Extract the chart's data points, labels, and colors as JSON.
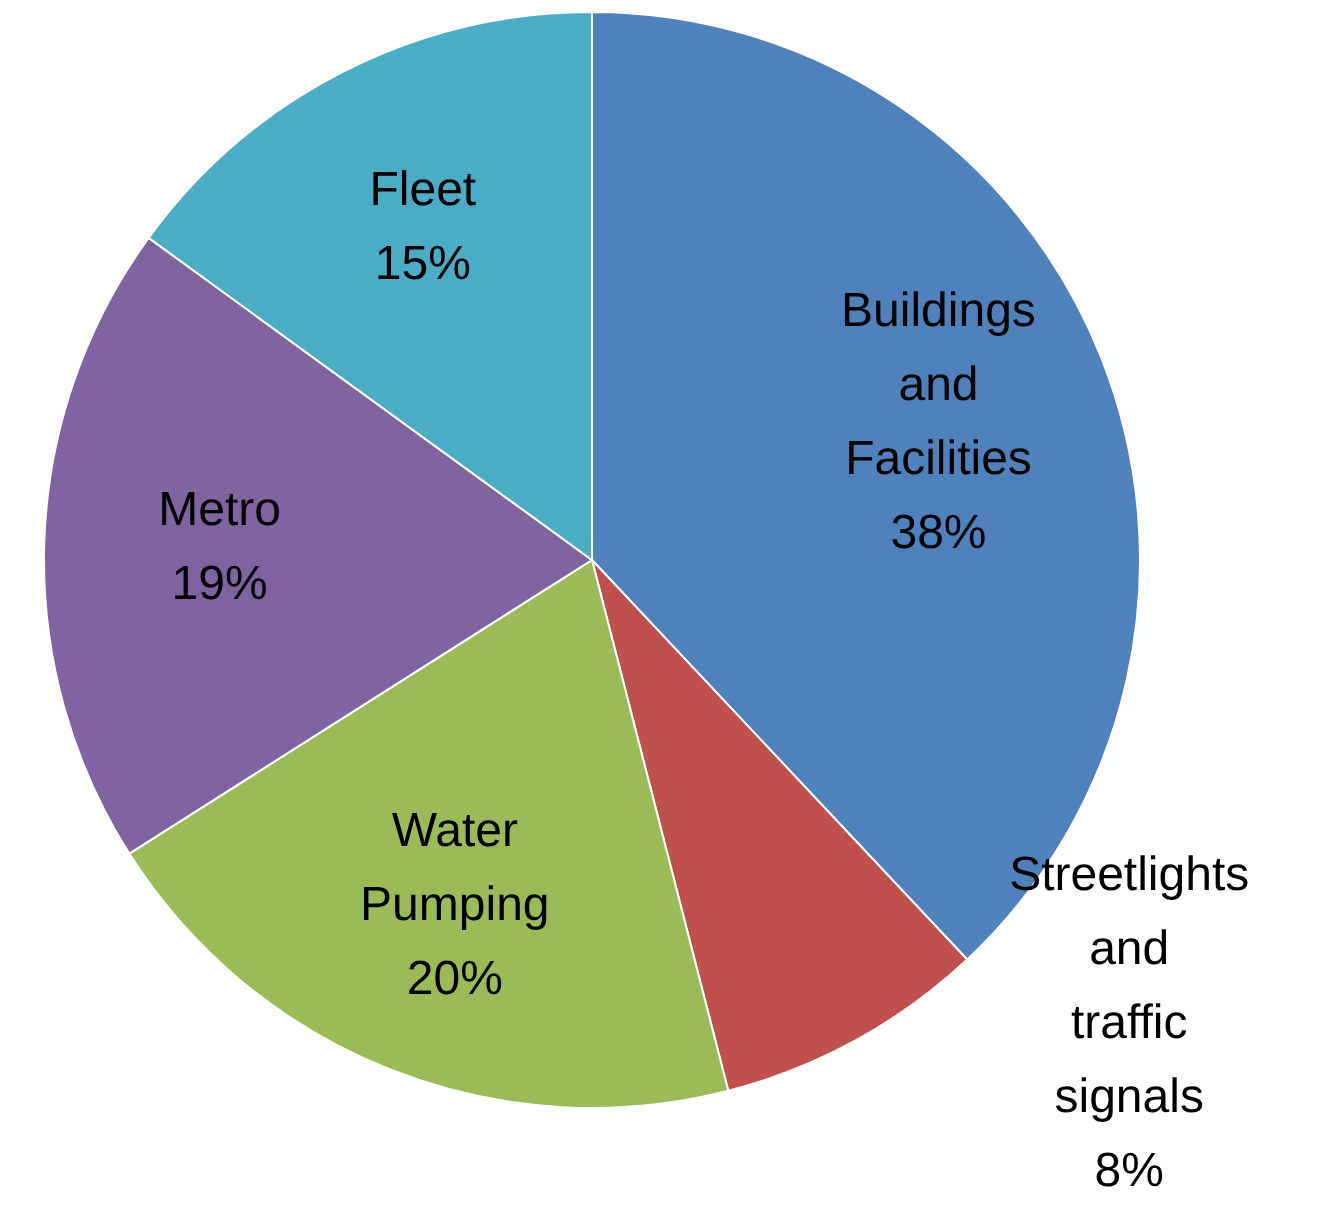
{
  "chart_data": {
    "type": "pie",
    "categories": [
      "Buildings and Facilities",
      "Streetlights and traffic signals",
      "Water Pumping",
      "Metro",
      "Fleet"
    ],
    "values": [
      38,
      8,
      20,
      19,
      15
    ],
    "value_labels": [
      "38%",
      "8%",
      "20%",
      "19%",
      "15%"
    ],
    "colors": [
      "#4f81bd",
      "#c0504d",
      "#9bbb59",
      "#8064a2",
      "#4bacc6"
    ]
  }
}
